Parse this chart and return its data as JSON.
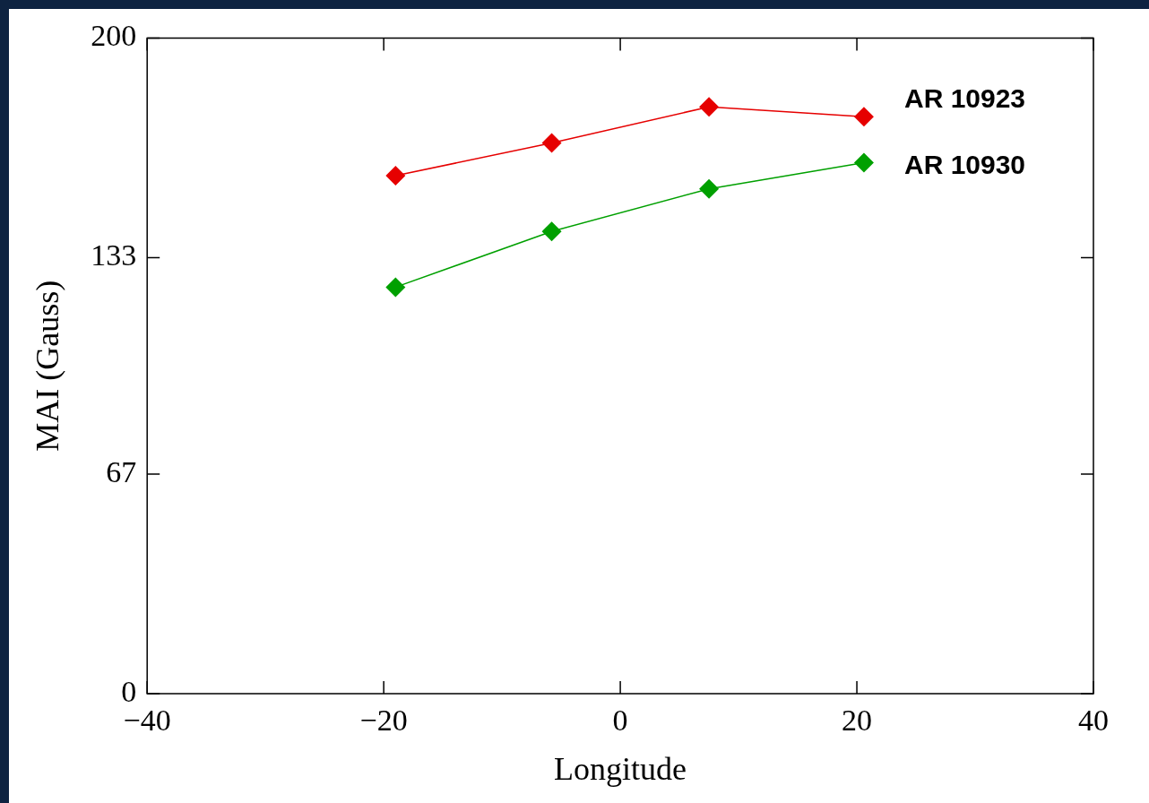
{
  "chart_data": {
    "type": "line",
    "xlabel": "Longitude",
    "ylabel": "MAI (Gauss)",
    "xlim": [
      -40,
      40
    ],
    "xticks": [
      -40,
      -20,
      0,
      20,
      40
    ],
    "ylim": [
      0,
      200
    ],
    "yticks": [
      0,
      67,
      133,
      200
    ],
    "marker": "diamond",
    "line_style": "solid",
    "legend": false,
    "series": [
      {
        "name": "AR 10923",
        "color": "#e60000",
        "x": [
          -19,
          -5.8,
          7.5,
          20.6
        ],
        "values": [
          158,
          168,
          179,
          176
        ]
      },
      {
        "name": "AR 10930",
        "color": "#00a000",
        "x": [
          -19,
          -5.8,
          7.5,
          20.6
        ],
        "values": [
          124,
          141,
          154,
          162
        ]
      }
    ]
  }
}
